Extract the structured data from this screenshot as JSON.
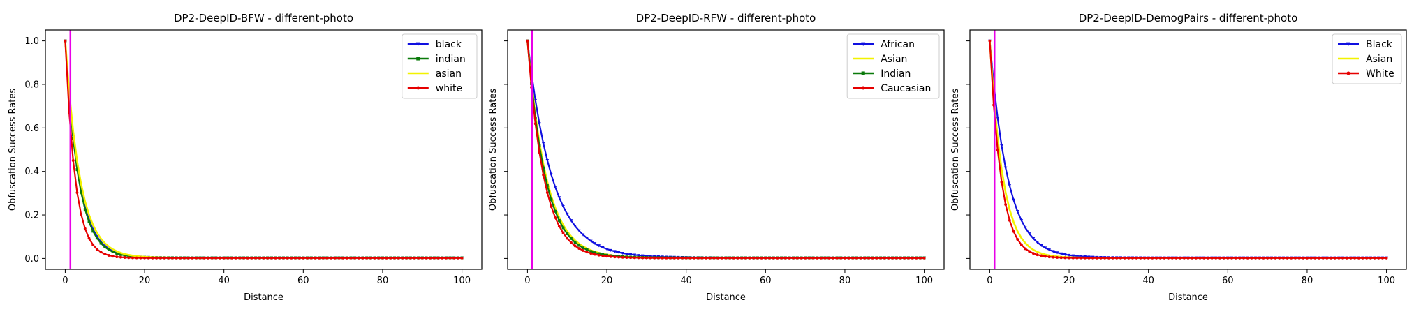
{
  "figure": {
    "panels": [
      {
        "title": "DP2-DeepID-BFW - different-photo",
        "xlabel": "Distance",
        "ylabel": "Obfuscation Success Rates",
        "show_y_ticklabels": true
      },
      {
        "title": "DP2-DeepID-RFW - different-photo",
        "xlabel": "Distance",
        "ylabel": "Obfuscation Success Rates",
        "show_y_ticklabels": false
      },
      {
        "title": "DP2-DeepID-DemogPairs - different-photo",
        "xlabel": "Distance",
        "ylabel": "Obfuscation Success Rates",
        "show_y_ticklabels": false
      }
    ]
  },
  "chart_data": [
    {
      "type": "line",
      "title": "DP2-DeepID-BFW - different-photo",
      "xlabel": "Distance",
      "ylabel": "Obfuscation Success Rates",
      "xlim": [
        -5,
        105
      ],
      "ylim": [
        -0.05,
        1.05
      ],
      "xticks": [
        0,
        20,
        40,
        60,
        80,
        100
      ],
      "yticks": [
        0.0,
        0.2,
        0.4,
        0.6,
        0.8,
        1.0
      ],
      "legend_position": "top-right",
      "vline": {
        "x": 1.3,
        "color": "#e800e8"
      },
      "x_range": [
        0,
        100
      ],
      "series": [
        {
          "name": "black",
          "color": "#1010e0",
          "marker": "triangle-down",
          "decay": 0.29,
          "floor": 0.003
        },
        {
          "name": "indian",
          "color": "#0a7a0a",
          "marker": "square",
          "decay": 0.3,
          "floor": 0.003
        },
        {
          "name": "asian",
          "color": "#f2f200",
          "marker": "none",
          "decay": 0.27,
          "floor": 0.003
        },
        {
          "name": "white",
          "color": "#e60000",
          "marker": "dot",
          "decay": 0.4,
          "floor": 0.002
        }
      ]
    },
    {
      "type": "line",
      "title": "DP2-DeepID-RFW - different-photo",
      "xlabel": "Distance",
      "ylabel": "Obfuscation Success Rates",
      "xlim": [
        -5,
        105
      ],
      "ylim": [
        -0.05,
        1.05
      ],
      "xticks": [
        0,
        20,
        40,
        60,
        80,
        100
      ],
      "yticks": [
        0.0,
        0.2,
        0.4,
        0.6,
        0.8,
        1.0
      ],
      "legend_position": "top-right",
      "vline": {
        "x": 1.2,
        "color": "#e800e8"
      },
      "x_range": [
        0,
        100
      ],
      "series": [
        {
          "name": "African",
          "color": "#1010e0",
          "marker": "triangle-down",
          "decay": 0.16,
          "floor": 0.003
        },
        {
          "name": "Asian",
          "color": "#f2f200",
          "marker": "none",
          "decay": 0.21,
          "floor": 0.003
        },
        {
          "name": "Indian",
          "color": "#0a7a0a",
          "marker": "square",
          "decay": 0.22,
          "floor": 0.003
        },
        {
          "name": "Caucasian",
          "color": "#e60000",
          "marker": "dot",
          "decay": 0.24,
          "floor": 0.002
        }
      ]
    },
    {
      "type": "line",
      "title": "DP2-DeepID-DemogPairs - different-photo",
      "xlabel": "Distance",
      "ylabel": "Obfuscation Success Rates",
      "xlim": [
        -5,
        105
      ],
      "ylim": [
        -0.05,
        1.05
      ],
      "xticks": [
        0,
        20,
        40,
        60,
        80,
        100
      ],
      "yticks": [
        0.0,
        0.2,
        0.4,
        0.6,
        0.8,
        1.0
      ],
      "legend_position": "top-right",
      "vline": {
        "x": 1.2,
        "color": "#e800e8"
      },
      "x_range": [
        0,
        100
      ],
      "series": [
        {
          "name": "Black",
          "color": "#1010e0",
          "marker": "triangle-down",
          "decay": 0.22,
          "floor": 0.003
        },
        {
          "name": "Asian",
          "color": "#f2f200",
          "marker": "none",
          "decay": 0.3,
          "floor": 0.003
        },
        {
          "name": "White",
          "color": "#e60000",
          "marker": "dot",
          "decay": 0.35,
          "floor": 0.002
        }
      ]
    }
  ]
}
